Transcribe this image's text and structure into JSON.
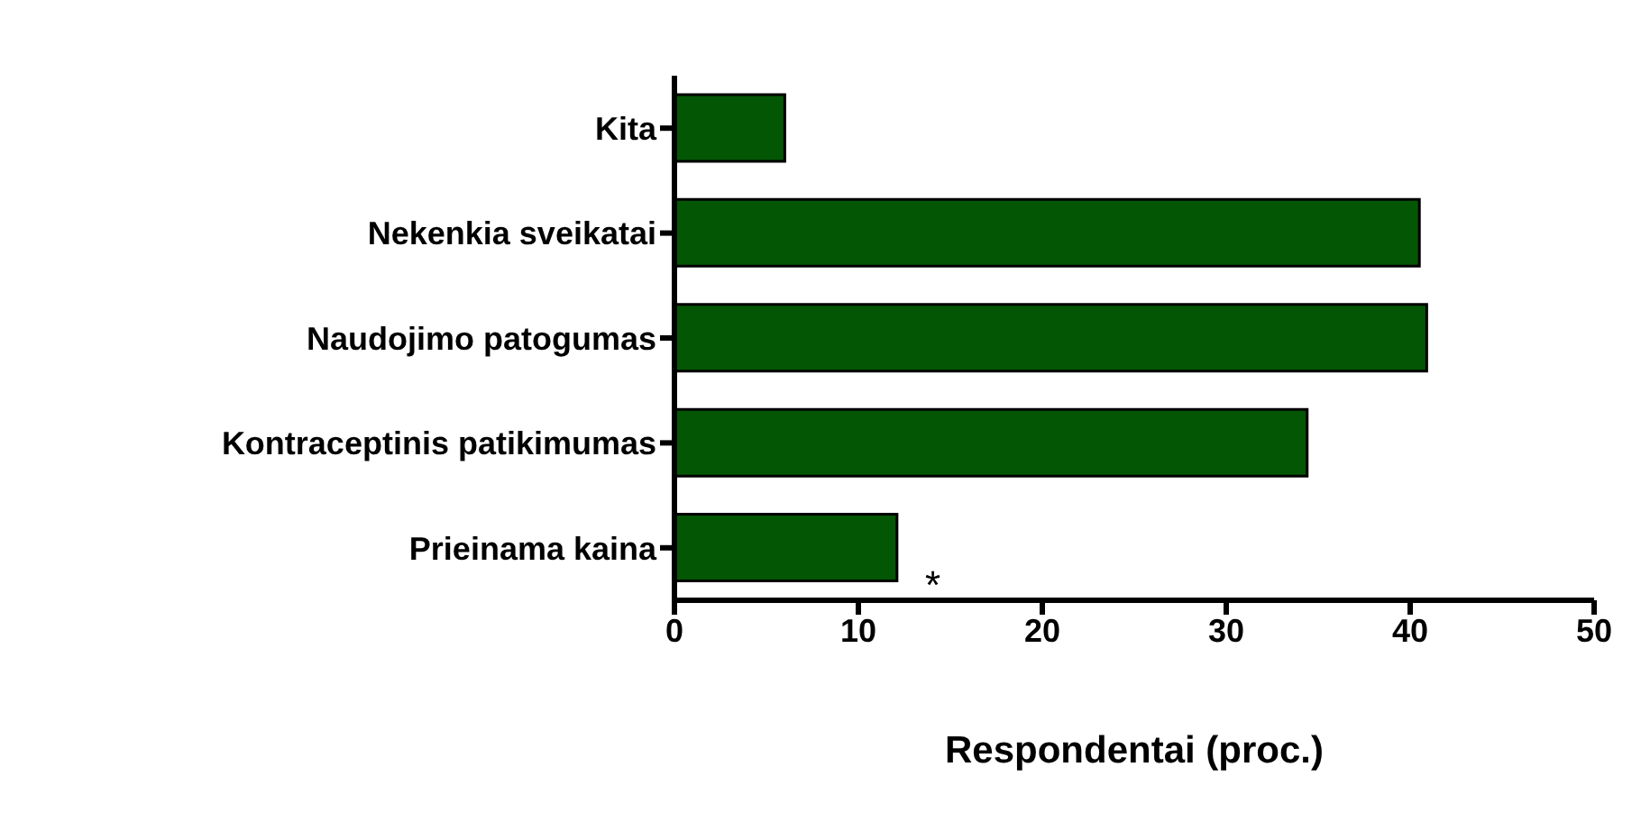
{
  "chart_data": {
    "type": "bar",
    "orientation": "horizontal",
    "xlabel": "Respondentai (proc.)",
    "categories": [
      "Kita",
      "Nekenkia sveikatai",
      "Naudojimo patogumas",
      "Kontraceptinis patikimumas",
      "Prieinama kaina"
    ],
    "values": [
      6,
      40.5,
      40.9,
      34.4,
      12.1
    ],
    "color": "#035603",
    "xlim": [
      0,
      50
    ],
    "xticks": [
      0,
      10,
      20,
      30,
      40,
      50
    ],
    "grid": false,
    "legend": false,
    "annotations": [
      "*"
    ]
  }
}
